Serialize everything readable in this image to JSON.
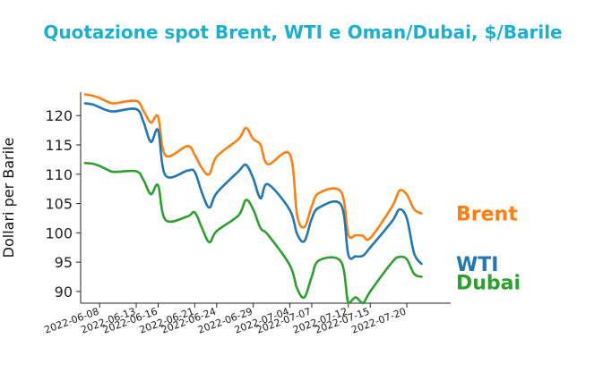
{
  "chart_data": {
    "type": "line",
    "title": "Quotazione spot Brent, WTI e Oman/Dubai, $/Barile",
    "title_color": "#1ab0cf",
    "xlabel": "",
    "ylabel": "Dollari per Barile",
    "ylim": [
      88,
      124
    ],
    "yticks": [
      90,
      95,
      100,
      105,
      110,
      115,
      120
    ],
    "xticks": [
      "2022-06-08",
      "2022-06-13",
      "2022-06-16",
      "2022-06-21",
      "2022-06-24",
      "2022-06-29",
      "2022-07-04",
      "2022-07-07",
      "2022-07-12",
      "2022-07-15",
      "2022-07-20"
    ],
    "x": [
      "2022-06-06",
      "2022-06-07",
      "2022-06-08",
      "2022-06-09",
      "2022-06-10",
      "2022-06-13",
      "2022-06-14",
      "2022-06-15",
      "2022-06-16",
      "2022-06-17",
      "2022-06-20",
      "2022-06-21",
      "2022-06-22",
      "2022-06-23",
      "2022-06-24",
      "2022-06-27",
      "2022-06-28",
      "2022-06-29",
      "2022-06-30",
      "2022-07-01",
      "2022-07-04",
      "2022-07-05",
      "2022-07-06",
      "2022-07-07",
      "2022-07-08",
      "2022-07-11",
      "2022-07-12",
      "2022-07-13",
      "2022-07-14",
      "2022-07-15",
      "2022-07-18",
      "2022-07-19",
      "2022-07-20",
      "2022-07-21",
      "2022-07-22"
    ],
    "grid": false,
    "series": [
      {
        "name": "Brent",
        "color": "#ff7f0e",
        "values": [
          123.6,
          123.4,
          123.0,
          122.4,
          122.1,
          122.5,
          120.8,
          118.8,
          119.8,
          113.2,
          114.8,
          113.3,
          111.0,
          110.0,
          113.0,
          116.0,
          117.9,
          116.0,
          115.0,
          111.7,
          113.4,
          103.0,
          101.0,
          104.5,
          106.8,
          107.0,
          99.7,
          99.6,
          99.5,
          99.1,
          104.5,
          107.2,
          106.5,
          104.0,
          103.3
        ]
      },
      {
        "name": "WTI",
        "color": "#1f77b4",
        "values": [
          122.1,
          121.9,
          121.4,
          120.9,
          120.7,
          121.1,
          118.9,
          115.5,
          117.5,
          109.8,
          110.6,
          110.4,
          106.8,
          104.3,
          106.8,
          110.5,
          111.6,
          109.3,
          105.9,
          108.3,
          103.9,
          99.8,
          98.6,
          102.4,
          104.3,
          104.8,
          96.3,
          96.0,
          96.1,
          97.5,
          102.0,
          104.0,
          102.5,
          96.5,
          94.7
        ]
      },
      {
        "name": "Dubai",
        "color": "#2ca02c",
        "values": [
          111.9,
          111.8,
          111.4,
          110.8,
          110.4,
          110.5,
          109.0,
          106.6,
          108.1,
          102.2,
          102.8,
          103.5,
          100.8,
          98.4,
          100.3,
          103.0,
          105.6,
          104.0,
          100.8,
          99.7,
          94.5,
          90.5,
          89.0,
          92.5,
          95.3,
          95.1,
          88.0,
          89.0,
          88.0,
          90.0,
          95.0,
          95.9,
          95.5,
          93.0,
          92.5
        ]
      }
    ]
  }
}
